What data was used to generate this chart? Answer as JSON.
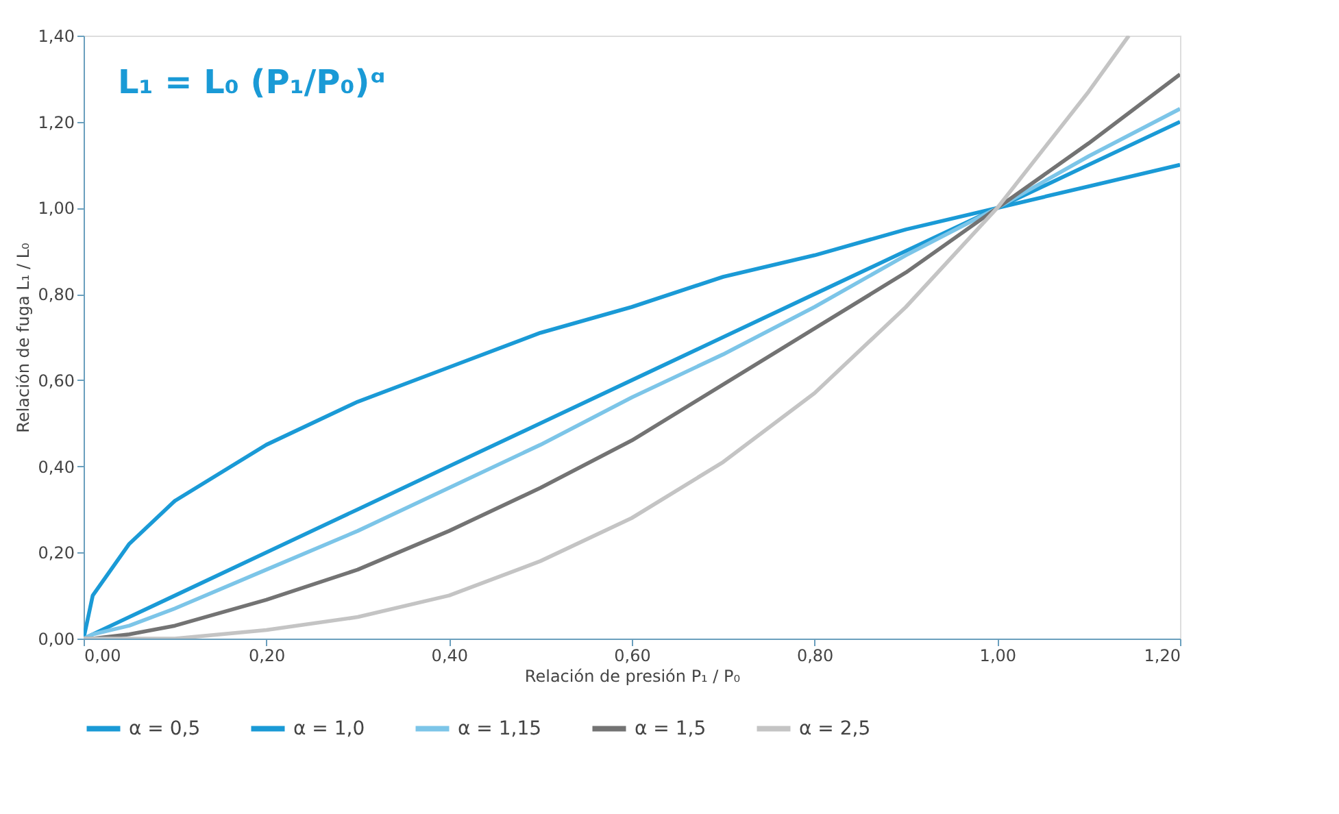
{
  "chart_data": {
    "type": "line",
    "xlabel": "Relación de presión P₁ / P₀",
    "ylabel": "Relación de fuga L₁ / L₀",
    "annotations": [
      "L₁ = L₀ (P₁/P₀)ᵅ"
    ],
    "x": [
      0,
      0.01,
      0.05,
      0.1,
      0.2,
      0.3,
      0.4,
      0.5,
      0.6,
      0.7,
      0.8,
      0.9,
      1.0,
      1.1,
      1.2
    ],
    "series": [
      {
        "name": "α = 0,5",
        "color": "#1a9ad6",
        "values": [
          0,
          0.1,
          0.22,
          0.32,
          0.45,
          0.55,
          0.63,
          0.71,
          0.77,
          0.84,
          0.89,
          0.95,
          1.0,
          1.05,
          1.1
        ]
      },
      {
        "name": "α = 1,0",
        "color": "#1a9ad6",
        "values": [
          0,
          0.01,
          0.05,
          0.1,
          0.2,
          0.3,
          0.4,
          0.5,
          0.6,
          0.7,
          0.8,
          0.9,
          1.0,
          1.1,
          1.2
        ]
      },
      {
        "name": "α = 1,15",
        "color": "#7cc5e8",
        "values": [
          0,
          0.01,
          0.03,
          0.07,
          0.16,
          0.25,
          0.35,
          0.45,
          0.56,
          0.66,
          0.77,
          0.89,
          1.0,
          1.12,
          1.23
        ]
      },
      {
        "name": "α = 1,5",
        "color": "#737373",
        "values": [
          0,
          0.0,
          0.01,
          0.03,
          0.09,
          0.16,
          0.25,
          0.35,
          0.46,
          0.59,
          0.72,
          0.85,
          1.0,
          1.15,
          1.31
        ]
      },
      {
        "name": "α = 2,5",
        "color": "#c4c4c4",
        "x": [
          0,
          0.01,
          0.05,
          0.1,
          0.2,
          0.3,
          0.4,
          0.5,
          0.6,
          0.7,
          0.8,
          0.9,
          1.0,
          1.1,
          1.144
        ],
        "values": [
          0,
          0.0,
          0.0,
          0.0,
          0.02,
          0.05,
          0.1,
          0.18,
          0.28,
          0.41,
          0.57,
          0.77,
          1.0,
          1.27,
          1.4
        ]
      }
    ],
    "xlim": [
      0,
      1.2
    ],
    "ylim": [
      0,
      1.4
    ],
    "xticks": [
      {
        "value": 0,
        "label": "0,00"
      },
      {
        "value": 0.2,
        "label": "0,20"
      },
      {
        "value": 0.4,
        "label": "0,40"
      },
      {
        "value": 0.6,
        "label": "0,60"
      },
      {
        "value": 0.8,
        "label": "0,80"
      },
      {
        "value": 1.0,
        "label": "1,00"
      },
      {
        "value": 1.2,
        "label": "1,20"
      }
    ],
    "yticks": [
      {
        "value": 0,
        "label": "0,00"
      },
      {
        "value": 0.2,
        "label": "0,20"
      },
      {
        "value": 0.4,
        "label": "0,40"
      },
      {
        "value": 0.6,
        "label": "0,60"
      },
      {
        "value": 0.8,
        "label": "0,80"
      },
      {
        "value": 1.0,
        "label": "1,00"
      },
      {
        "value": 1.2,
        "label": "1,20"
      },
      {
        "value": 1.4,
        "label": "1,40"
      }
    ],
    "grid": false,
    "legend": "bottom",
    "marker": "none",
    "line_style": "solid"
  }
}
